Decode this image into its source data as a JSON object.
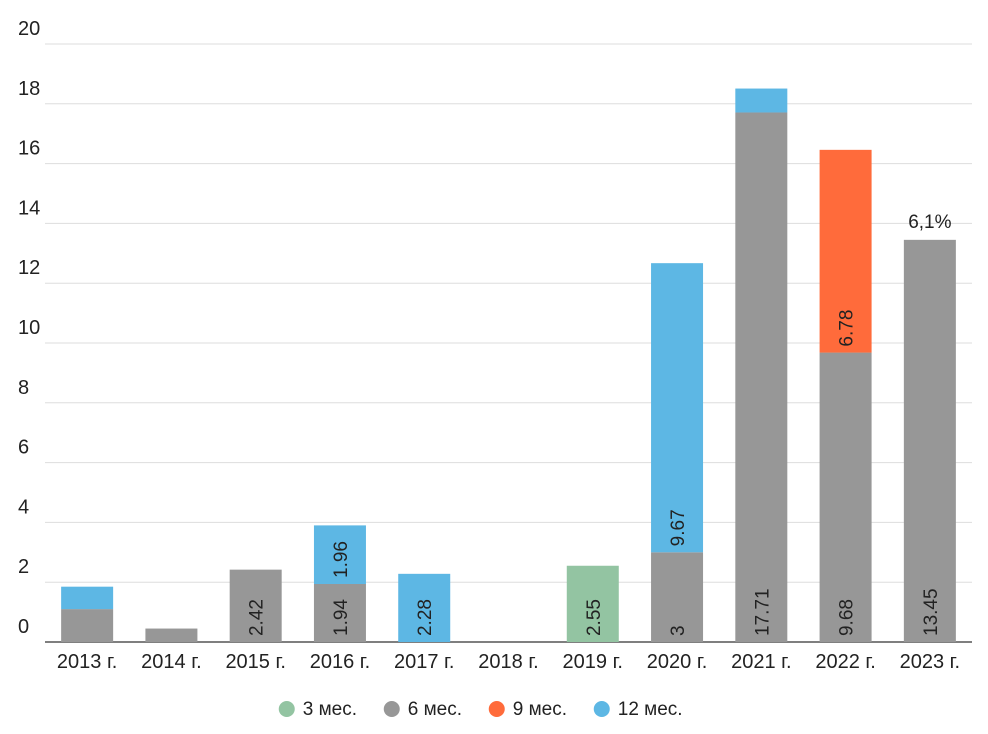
{
  "chart_data": {
    "type": "bar",
    "stacked": true,
    "categories": [
      "2013 г.",
      "2014 г.",
      "2015 г.",
      "2016 г.",
      "2017 г.",
      "2018 г.",
      "2019 г.",
      "2020 г.",
      "2021 г.",
      "2022 г.",
      "2023 г."
    ],
    "series": [
      {
        "name": "3 мес.",
        "color": "#93c4a2",
        "values": [
          0,
          0,
          0,
          0,
          0,
          0,
          2.55,
          0,
          0,
          0,
          0
        ],
        "labels": [
          "",
          "",
          "",
          "",
          "",
          "",
          "2.55",
          "",
          "",
          "",
          ""
        ]
      },
      {
        "name": "6 мес.",
        "color": "#979797",
        "values": [
          1.1,
          0.45,
          2.42,
          1.94,
          0,
          0,
          0,
          3,
          17.71,
          9.68,
          13.45
        ],
        "labels": [
          "",
          "",
          "2.42",
          "1.94",
          "",
          "",
          "",
          "3",
          "17.71",
          "9.68",
          "13.45"
        ]
      },
      {
        "name": "9 мес.",
        "color": "#ff6b3b",
        "values": [
          0,
          0,
          0,
          0,
          0,
          0,
          0,
          0,
          0,
          6.78,
          0
        ],
        "labels": [
          "",
          "",
          "",
          "",
          "",
          "",
          "",
          "",
          "",
          "6.78",
          ""
        ]
      },
      {
        "name": "12 мес.",
        "color": "#5db7e4",
        "values": [
          0.75,
          0,
          0,
          1.96,
          2.28,
          0,
          0,
          9.67,
          0.8,
          0,
          0
        ],
        "labels": [
          "",
          "",
          "",
          "1.96",
          "2.28",
          "",
          "",
          "9.67",
          "",
          "",
          ""
        ]
      }
    ],
    "annotations": [
      {
        "category": "2023 г.",
        "text": "6,1%"
      }
    ],
    "ylim": [
      0,
      20
    ],
    "yticks": [
      0,
      2,
      4,
      6,
      8,
      10,
      12,
      14,
      16,
      18,
      20
    ],
    "title": "",
    "xlabel": "",
    "ylabel": "",
    "grid": true,
    "legend_position": "bottom-center"
  }
}
